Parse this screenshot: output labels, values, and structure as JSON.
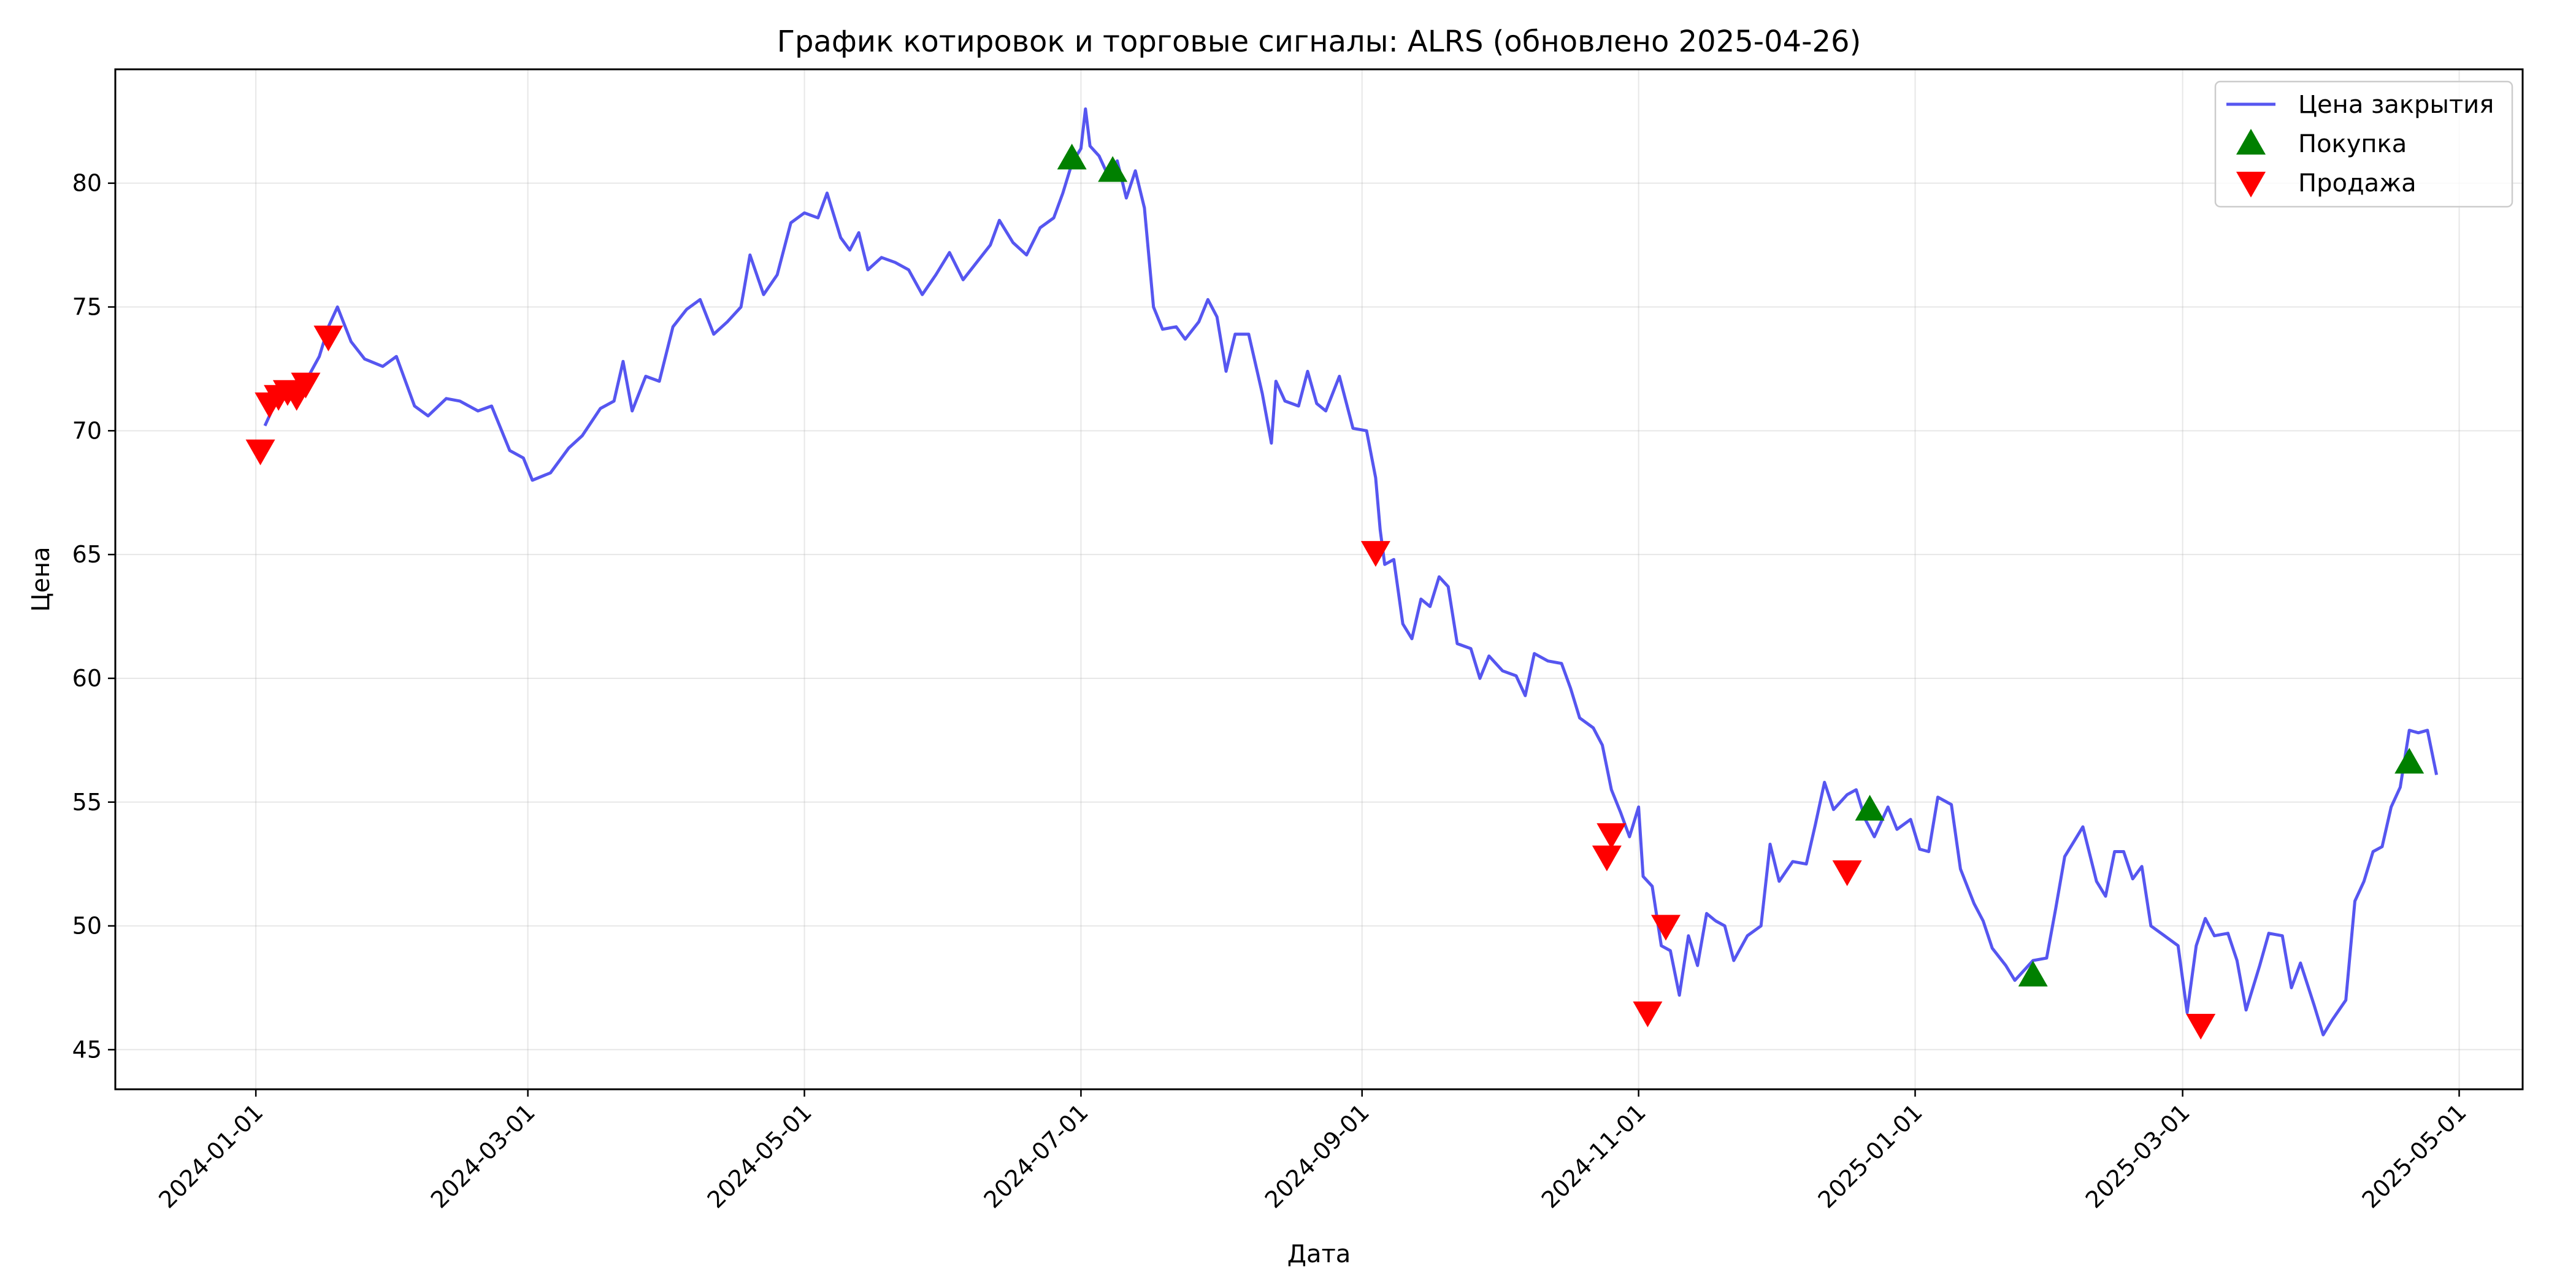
{
  "chart_data": {
    "type": "line",
    "title": "График котировок и торговые сигналы: ALRS (обновлено 2025-04-26)",
    "xlabel": "Дата",
    "ylabel": "Цена",
    "xlim": [
      "2023-12-01",
      "2025-05-15"
    ],
    "ylim": [
      43.4,
      84.6
    ],
    "x_ticks": [
      "2024-01-01",
      "2024-03-01",
      "2024-05-01",
      "2024-07-01",
      "2024-09-01",
      "2024-11-01",
      "2025-01-01",
      "2025-03-01",
      "2025-05-01"
    ],
    "y_ticks": [
      45,
      50,
      55,
      60,
      65,
      70,
      75,
      80
    ],
    "grid": true,
    "legend_position": "top-right",
    "colors": {
      "line": "#4444ee",
      "buy": "#008000",
      "sell": "#ff0000"
    },
    "series": [
      {
        "name": "Цена закрытия",
        "points": [
          [
            "2024-01-03",
            70.2
          ],
          [
            "2024-01-05",
            71.0
          ],
          [
            "2024-01-08",
            71.4
          ],
          [
            "2024-01-10",
            71.5
          ],
          [
            "2024-01-12",
            72.0
          ],
          [
            "2024-01-15",
            73.0
          ],
          [
            "2024-01-17",
            74.2
          ],
          [
            "2024-01-19",
            75.0
          ],
          [
            "2024-01-22",
            73.6
          ],
          [
            "2024-01-25",
            72.9
          ],
          [
            "2024-01-29",
            72.6
          ],
          [
            "2024-02-01",
            73.0
          ],
          [
            "2024-02-05",
            71.0
          ],
          [
            "2024-02-08",
            70.6
          ],
          [
            "2024-02-12",
            71.3
          ],
          [
            "2024-02-15",
            71.2
          ],
          [
            "2024-02-19",
            70.8
          ],
          [
            "2024-02-22",
            71.0
          ],
          [
            "2024-02-26",
            69.2
          ],
          [
            "2024-02-29",
            68.9
          ],
          [
            "2024-03-02",
            68.0
          ],
          [
            "2024-03-06",
            68.3
          ],
          [
            "2024-03-10",
            69.3
          ],
          [
            "2024-03-13",
            69.8
          ],
          [
            "2024-03-17",
            70.9
          ],
          [
            "2024-03-20",
            71.2
          ],
          [
            "2024-03-22",
            72.8
          ],
          [
            "2024-03-24",
            70.8
          ],
          [
            "2024-03-27",
            72.2
          ],
          [
            "2024-03-30",
            72.0
          ],
          [
            "2024-04-02",
            74.2
          ],
          [
            "2024-04-05",
            74.9
          ],
          [
            "2024-04-08",
            75.3
          ],
          [
            "2024-04-11",
            73.9
          ],
          [
            "2024-04-14",
            74.4
          ],
          [
            "2024-04-17",
            75.0
          ],
          [
            "2024-04-19",
            77.1
          ],
          [
            "2024-04-22",
            75.5
          ],
          [
            "2024-04-25",
            76.3
          ],
          [
            "2024-04-28",
            78.4
          ],
          [
            "2024-05-01",
            78.8
          ],
          [
            "2024-05-04",
            78.6
          ],
          [
            "2024-05-06",
            79.6
          ],
          [
            "2024-05-09",
            77.8
          ],
          [
            "2024-05-11",
            77.3
          ],
          [
            "2024-05-13",
            78.0
          ],
          [
            "2024-05-15",
            76.5
          ],
          [
            "2024-05-18",
            77.0
          ],
          [
            "2024-05-21",
            76.8
          ],
          [
            "2024-05-24",
            76.5
          ],
          [
            "2024-05-27",
            75.5
          ],
          [
            "2024-05-30",
            76.3
          ],
          [
            "2024-06-02",
            77.2
          ],
          [
            "2024-06-05",
            76.1
          ],
          [
            "2024-06-08",
            76.8
          ],
          [
            "2024-06-11",
            77.5
          ],
          [
            "2024-06-13",
            78.5
          ],
          [
            "2024-06-16",
            77.6
          ],
          [
            "2024-06-19",
            77.1
          ],
          [
            "2024-06-22",
            78.2
          ],
          [
            "2024-06-25",
            78.6
          ],
          [
            "2024-06-27",
            79.6
          ],
          [
            "2024-06-29",
            80.8
          ],
          [
            "2024-07-01",
            81.4
          ],
          [
            "2024-07-02",
            83.0
          ],
          [
            "2024-07-03",
            81.5
          ],
          [
            "2024-07-05",
            81.1
          ],
          [
            "2024-07-07",
            80.3
          ],
          [
            "2024-07-09",
            80.9
          ],
          [
            "2024-07-11",
            79.4
          ],
          [
            "2024-07-13",
            80.5
          ],
          [
            "2024-07-15",
            79.0
          ],
          [
            "2024-07-17",
            75.0
          ],
          [
            "2024-07-19",
            74.1
          ],
          [
            "2024-07-22",
            74.2
          ],
          [
            "2024-07-24",
            73.7
          ],
          [
            "2024-07-27",
            74.4
          ],
          [
            "2024-07-29",
            75.3
          ],
          [
            "2024-07-31",
            74.6
          ],
          [
            "2024-08-02",
            72.4
          ],
          [
            "2024-08-04",
            73.9
          ],
          [
            "2024-08-07",
            73.9
          ],
          [
            "2024-08-10",
            71.5
          ],
          [
            "2024-08-12",
            69.5
          ],
          [
            "2024-08-13",
            72.0
          ],
          [
            "2024-08-15",
            71.2
          ],
          [
            "2024-08-18",
            71.0
          ],
          [
            "2024-08-20",
            72.4
          ],
          [
            "2024-08-22",
            71.1
          ],
          [
            "2024-08-24",
            70.8
          ],
          [
            "2024-08-27",
            72.2
          ],
          [
            "2024-08-30",
            70.1
          ],
          [
            "2024-09-02",
            70.0
          ],
          [
            "2024-09-04",
            68.1
          ],
          [
            "2024-09-05",
            66.0
          ],
          [
            "2024-09-06",
            64.6
          ],
          [
            "2024-09-08",
            64.8
          ],
          [
            "2024-09-10",
            62.2
          ],
          [
            "2024-09-12",
            61.6
          ],
          [
            "2024-09-14",
            63.2
          ],
          [
            "2024-09-16",
            62.9
          ],
          [
            "2024-09-18",
            64.1
          ],
          [
            "2024-09-20",
            63.7
          ],
          [
            "2024-09-22",
            61.4
          ],
          [
            "2024-09-25",
            61.2
          ],
          [
            "2024-09-27",
            60.0
          ],
          [
            "2024-09-29",
            60.9
          ],
          [
            "2024-10-02",
            60.3
          ],
          [
            "2024-10-05",
            60.1
          ],
          [
            "2024-10-07",
            59.3
          ],
          [
            "2024-10-09",
            61.0
          ],
          [
            "2024-10-12",
            60.7
          ],
          [
            "2024-10-15",
            60.6
          ],
          [
            "2024-10-17",
            59.6
          ],
          [
            "2024-10-19",
            58.4
          ],
          [
            "2024-10-22",
            58.0
          ],
          [
            "2024-10-24",
            57.3
          ],
          [
            "2024-10-26",
            55.5
          ],
          [
            "2024-10-28",
            54.6
          ],
          [
            "2024-10-30",
            53.6
          ],
          [
            "2024-11-01",
            54.8
          ],
          [
            "2024-11-02",
            52.0
          ],
          [
            "2024-11-04",
            51.6
          ],
          [
            "2024-11-06",
            49.2
          ],
          [
            "2024-11-08",
            49.0
          ],
          [
            "2024-11-10",
            47.2
          ],
          [
            "2024-11-12",
            49.6
          ],
          [
            "2024-11-14",
            48.4
          ],
          [
            "2024-11-16",
            50.5
          ],
          [
            "2024-11-18",
            50.2
          ],
          [
            "2024-11-20",
            50.0
          ],
          [
            "2024-11-22",
            48.6
          ],
          [
            "2024-11-25",
            49.6
          ],
          [
            "2024-11-28",
            50.0
          ],
          [
            "2024-11-30",
            53.3
          ],
          [
            "2024-12-02",
            51.8
          ],
          [
            "2024-12-05",
            52.6
          ],
          [
            "2024-12-08",
            52.5
          ],
          [
            "2024-12-10",
            54.1
          ],
          [
            "2024-12-12",
            55.8
          ],
          [
            "2024-12-14",
            54.7
          ],
          [
            "2024-12-17",
            55.3
          ],
          [
            "2024-12-19",
            55.5
          ],
          [
            "2024-12-21",
            54.3
          ],
          [
            "2024-12-23",
            53.6
          ],
          [
            "2024-12-26",
            54.8
          ],
          [
            "2024-12-28",
            53.9
          ],
          [
            "2024-12-31",
            54.3
          ],
          [
            "2025-01-02",
            53.1
          ],
          [
            "2025-01-04",
            53.0
          ],
          [
            "2025-01-06",
            55.2
          ],
          [
            "2025-01-09",
            54.9
          ],
          [
            "2025-01-11",
            52.3
          ],
          [
            "2025-01-14",
            50.9
          ],
          [
            "2025-01-16",
            50.2
          ],
          [
            "2025-01-18",
            49.1
          ],
          [
            "2025-01-21",
            48.4
          ],
          [
            "2025-01-23",
            47.8
          ],
          [
            "2025-01-25",
            48.2
          ],
          [
            "2025-01-27",
            48.6
          ],
          [
            "2025-01-30",
            48.7
          ],
          [
            "2025-02-01",
            50.7
          ],
          [
            "2025-02-03",
            52.8
          ],
          [
            "2025-02-05",
            53.4
          ],
          [
            "2025-02-07",
            54.0
          ],
          [
            "2025-02-10",
            51.8
          ],
          [
            "2025-02-12",
            51.2
          ],
          [
            "2025-02-14",
            53.0
          ],
          [
            "2025-02-16",
            53.0
          ],
          [
            "2025-02-18",
            51.9
          ],
          [
            "2025-02-20",
            52.4
          ],
          [
            "2025-02-22",
            50.0
          ],
          [
            "2025-02-25",
            49.6
          ],
          [
            "2025-02-28",
            49.2
          ],
          [
            "2025-03-02",
            46.5
          ],
          [
            "2025-03-04",
            49.2
          ],
          [
            "2025-03-06",
            50.3
          ],
          [
            "2025-03-08",
            49.6
          ],
          [
            "2025-03-11",
            49.7
          ],
          [
            "2025-03-13",
            48.6
          ],
          [
            "2025-03-15",
            46.6
          ],
          [
            "2025-03-18",
            48.4
          ],
          [
            "2025-03-20",
            49.7
          ],
          [
            "2025-03-23",
            49.6
          ],
          [
            "2025-03-25",
            47.5
          ],
          [
            "2025-03-27",
            48.5
          ],
          [
            "2025-03-30",
            46.8
          ],
          [
            "2025-04-01",
            45.6
          ],
          [
            "2025-04-03",
            46.2
          ],
          [
            "2025-04-06",
            47.0
          ],
          [
            "2025-04-08",
            51.0
          ],
          [
            "2025-04-10",
            51.8
          ],
          [
            "2025-04-12",
            53.0
          ],
          [
            "2025-04-14",
            53.2
          ],
          [
            "2025-04-16",
            54.8
          ],
          [
            "2025-04-18",
            55.6
          ],
          [
            "2025-04-20",
            57.9
          ],
          [
            "2025-04-22",
            57.8
          ],
          [
            "2025-04-24",
            57.9
          ],
          [
            "2025-04-26",
            56.1
          ]
        ]
      },
      {
        "name": "Покупка",
        "points": [
          [
            "2024-06-29",
            81.0
          ],
          [
            "2024-07-08",
            80.5
          ],
          [
            "2024-12-22",
            54.7
          ],
          [
            "2025-01-27",
            48.0
          ],
          [
            "2025-04-20",
            56.6
          ]
        ]
      },
      {
        "name": "Продажа",
        "points": [
          [
            "2024-01-02",
            69.2
          ],
          [
            "2024-01-04",
            71.1
          ],
          [
            "2024-01-06",
            71.4
          ],
          [
            "2024-01-08",
            71.6
          ],
          [
            "2024-01-10",
            71.4
          ],
          [
            "2024-01-12",
            71.9
          ],
          [
            "2024-01-17",
            73.8
          ],
          [
            "2024-09-04",
            65.1
          ],
          [
            "2024-10-25",
            52.8
          ],
          [
            "2024-10-26",
            53.7
          ],
          [
            "2024-11-03",
            46.5
          ],
          [
            "2024-11-07",
            50.0
          ],
          [
            "2024-12-17",
            52.2
          ],
          [
            "2025-03-05",
            46.0
          ]
        ]
      }
    ]
  }
}
